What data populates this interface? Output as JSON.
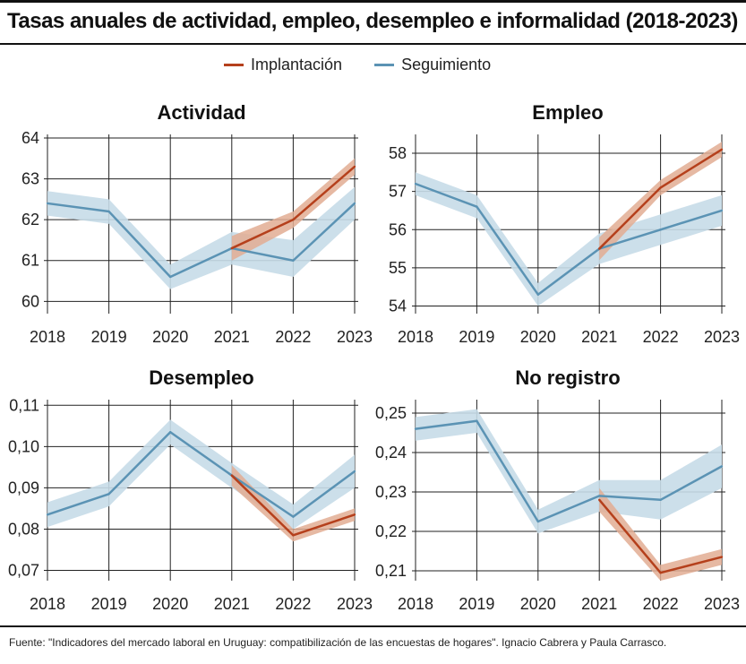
{
  "title": "Tasas anuales de actividad, empleo, desempleo e informalidad (2018-2023)",
  "legend": [
    {
      "label": "Implantación",
      "color": "#b5401c"
    },
    {
      "label": "Seguimiento",
      "color": "#5b93b4"
    }
  ],
  "colors": {
    "implantacion_line": "#b5401c",
    "implantacion_band": "#e2ad93",
    "seguimiento_line": "#5b93b4",
    "seguimiento_band": "#c7dbe8"
  },
  "source": "Fuente: \"Indicadores del mercado laboral en Uruguay: compatibilización de las encuestas de hogares\". Ignacio Cabrera y Paula Carrasco.",
  "chart_data": [
    {
      "type": "line",
      "title": "Actividad",
      "x": [
        "2018",
        "2019",
        "2020",
        "2021",
        "2022",
        "2023"
      ],
      "ylim": [
        59.7,
        64.0
      ],
      "yticks": [
        60,
        61,
        62,
        63,
        64
      ],
      "ytick_labels": [
        "60",
        "61",
        "62",
        "63",
        "64"
      ],
      "series": [
        {
          "name": "Seguimiento",
          "x": [
            "2018",
            "2019",
            "2020",
            "2021",
            "2022",
            "2023"
          ],
          "values": [
            62.4,
            62.2,
            60.6,
            61.3,
            61.0,
            62.4
          ],
          "lower": [
            62.1,
            61.9,
            60.3,
            60.9,
            60.6,
            62.0
          ],
          "upper": [
            62.7,
            62.5,
            60.9,
            61.7,
            61.5,
            62.8
          ]
        },
        {
          "name": "Implantación",
          "x": [
            "2021",
            "2022",
            "2023"
          ],
          "values": [
            61.3,
            62.0,
            63.3
          ],
          "lower": [
            61.0,
            61.8,
            63.1
          ],
          "upper": [
            61.6,
            62.2,
            63.5
          ]
        }
      ]
    },
    {
      "type": "line",
      "title": "Empleo",
      "x": [
        "2018",
        "2019",
        "2020",
        "2021",
        "2022",
        "2023"
      ],
      "ylim": [
        53.8,
        58.4
      ],
      "yticks": [
        54,
        55,
        56,
        57,
        58
      ],
      "ytick_labels": [
        "54",
        "55",
        "56",
        "57",
        "58"
      ],
      "series": [
        {
          "name": "Seguimiento",
          "x": [
            "2018",
            "2019",
            "2020",
            "2021",
            "2022",
            "2023"
          ],
          "values": [
            57.2,
            56.6,
            54.3,
            55.5,
            56.0,
            56.5
          ],
          "lower": [
            56.9,
            56.3,
            54.0,
            55.1,
            55.6,
            56.1
          ],
          "upper": [
            57.5,
            56.9,
            54.6,
            55.9,
            56.4,
            56.9
          ]
        },
        {
          "name": "Implantación",
          "x": [
            "2021",
            "2022",
            "2023"
          ],
          "values": [
            55.5,
            57.1,
            58.1
          ],
          "lower": [
            55.2,
            56.9,
            57.9
          ],
          "upper": [
            55.8,
            57.3,
            58.3
          ]
        }
      ]
    },
    {
      "type": "line",
      "title": "Desempleo",
      "x": [
        "2018",
        "2019",
        "2020",
        "2021",
        "2022",
        "2023"
      ],
      "ylim": [
        0.0675,
        0.1105
      ],
      "yticks": [
        0.07,
        0.08,
        0.09,
        0.1,
        0.11
      ],
      "ytick_labels": [
        "0,07",
        "0,08",
        "0,09",
        "0,10",
        "0,11"
      ],
      "series": [
        {
          "name": "Seguimiento",
          "x": [
            "2018",
            "2019",
            "2020",
            "2021",
            "2022",
            "2023"
          ],
          "values": [
            0.0835,
            0.0885,
            0.1035,
            0.093,
            0.083,
            0.094
          ],
          "lower": [
            0.0805,
            0.0855,
            0.1005,
            0.09,
            0.08,
            0.09
          ],
          "upper": [
            0.0865,
            0.0915,
            0.1065,
            0.096,
            0.086,
            0.098
          ]
        },
        {
          "name": "Implantación",
          "x": [
            "2021",
            "2022",
            "2023"
          ],
          "values": [
            0.093,
            0.0785,
            0.0835
          ],
          "lower": [
            0.0905,
            0.077,
            0.082
          ],
          "upper": [
            0.0955,
            0.08,
            0.085
          ]
        }
      ]
    },
    {
      "type": "line",
      "title": "No registro",
      "x": [
        "2018",
        "2019",
        "2020",
        "2021",
        "2022",
        "2023"
      ],
      "ylim": [
        0.2075,
        0.2525
      ],
      "yticks": [
        0.21,
        0.22,
        0.23,
        0.24,
        0.25
      ],
      "ytick_labels": [
        "0,21",
        "0,22",
        "0,23",
        "0,24",
        "0,25"
      ],
      "series": [
        {
          "name": "Seguimiento",
          "x": [
            "2018",
            "2019",
            "2020",
            "2021",
            "2022",
            "2023"
          ],
          "values": [
            0.246,
            0.248,
            0.2225,
            0.229,
            0.228,
            0.2365
          ],
          "lower": [
            0.243,
            0.245,
            0.2195,
            0.225,
            0.223,
            0.231
          ],
          "upper": [
            0.249,
            0.251,
            0.2255,
            0.233,
            0.233,
            0.242
          ]
        },
        {
          "name": "Implantación",
          "x": [
            "2021",
            "2022",
            "2023"
          ],
          "values": [
            0.228,
            0.2095,
            0.2135
          ],
          "lower": [
            0.225,
            0.2075,
            0.2115
          ],
          "upper": [
            0.231,
            0.2115,
            0.2155
          ]
        }
      ]
    }
  ]
}
